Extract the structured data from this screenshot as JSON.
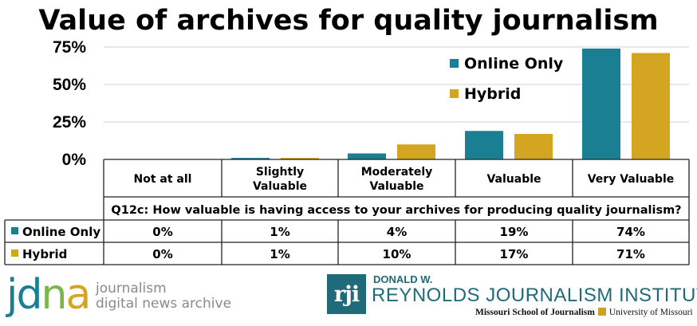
{
  "chart_data": {
    "type": "bar",
    "title": "Value of archives for quality journalism",
    "categories": [
      [
        "Not at all"
      ],
      [
        "Slightly",
        "Valuable"
      ],
      [
        "Moderately",
        "Valuable"
      ],
      [
        "Valuable"
      ],
      [
        "Very Valuable"
      ]
    ],
    "series": [
      {
        "name": "Online Only",
        "color": "#1b7f94",
        "values": [
          0,
          1,
          4,
          19,
          74
        ],
        "labels": [
          "0%",
          "1%",
          "4%",
          "19%",
          "74%"
        ]
      },
      {
        "name": "Hybrid",
        "color": "#d4a520",
        "values": [
          0,
          1,
          10,
          17,
          71
        ],
        "labels": [
          "0%",
          "1%",
          "10%",
          "17%",
          "71%"
        ]
      }
    ],
    "yticks": [
      "0%",
      "25%",
      "50%",
      "75%"
    ],
    "ytick_values": [
      0,
      25,
      50,
      75
    ],
    "ylim": [
      0,
      75
    ],
    "question": "Q12c: How valuable is having access to your archives for producing quality journalism?",
    "legend_position": "top-right",
    "grid": true
  },
  "footer": {
    "jdna_letters": [
      "j",
      "d",
      "n",
      "a"
    ],
    "jdna_colors": [
      "#1b7f94",
      "#1b7f94",
      "#7ab648",
      "#d4a520"
    ],
    "jdna_line1": "journalism",
    "jdna_line2": "digital news archive",
    "rji_box": "rji",
    "rji_top": "DONALD W.",
    "rji_name": "REYNOLDS JOURNALISM INSTITUTE",
    "rji_sub_school": "Missouri School of Journalism",
    "rji_sub_univ": "University of Missouri"
  }
}
